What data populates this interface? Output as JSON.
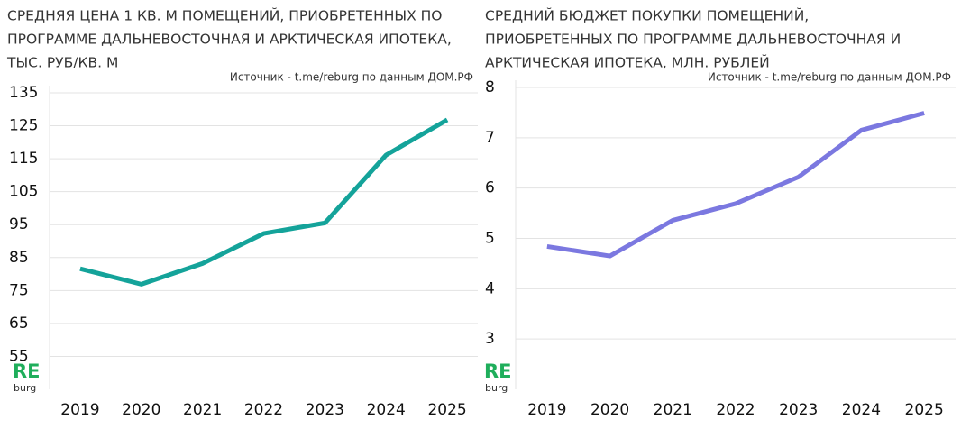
{
  "chart_data": [
    {
      "type": "line",
      "title": [
        "СРЕДНЯЯ ЦЕНА 1 КВ. М ПОМЕЩЕНИЙ, ПРИОБРЕТЕННЫХ ПО",
        "ПРОГРАММЕ ДАЛЬНЕВОСТОЧНАЯ И АРКТИЧЕСКАЯ ИПОТЕКА,",
        "ТЫС. РУБ/КВ. М"
      ],
      "source": "Источник - t.me/reburg по данным ДОМ.РФ",
      "categories": [
        "2019",
        "2020",
        "2021",
        "2022",
        "2023",
        "2024",
        "2025"
      ],
      "values": [
        81.6,
        76.9,
        83.2,
        92.3,
        95.5,
        116.1,
        126.8
      ],
      "color": "#14a39a",
      "ylim": [
        45,
        135
      ],
      "yticks": [
        55,
        65,
        75,
        85,
        95,
        105,
        115,
        125,
        135
      ],
      "grid": true
    },
    {
      "type": "line",
      "title": [
        "СРЕДНИЙ БЮДЖЕТ ПОКУПКИ ПОМЕЩЕНИЙ,",
        "ПРИОБРЕТЕННЫХ ПО ПРОГРАММЕ ДАЛЬНЕВОСТОЧНАЯ И",
        "АРКТИЧЕСКАЯ ИПОТЕКА, МЛН. РУБЛЕЙ"
      ],
      "source": "Источник - t.me/reburg по данным ДОМ.РФ",
      "categories": [
        "2019",
        "2020",
        "2021",
        "2022",
        "2023",
        "2024",
        "2025"
      ],
      "values": [
        4.84,
        4.65,
        5.36,
        5.69,
        6.22,
        7.15,
        7.49
      ],
      "color": "#7b78e0",
      "ylim": [
        2,
        8
      ],
      "yticks": [
        3,
        4,
        5,
        6,
        7,
        8
      ],
      "grid": true
    }
  ],
  "logo": {
    "main": "RE",
    "sub": "burg"
  }
}
